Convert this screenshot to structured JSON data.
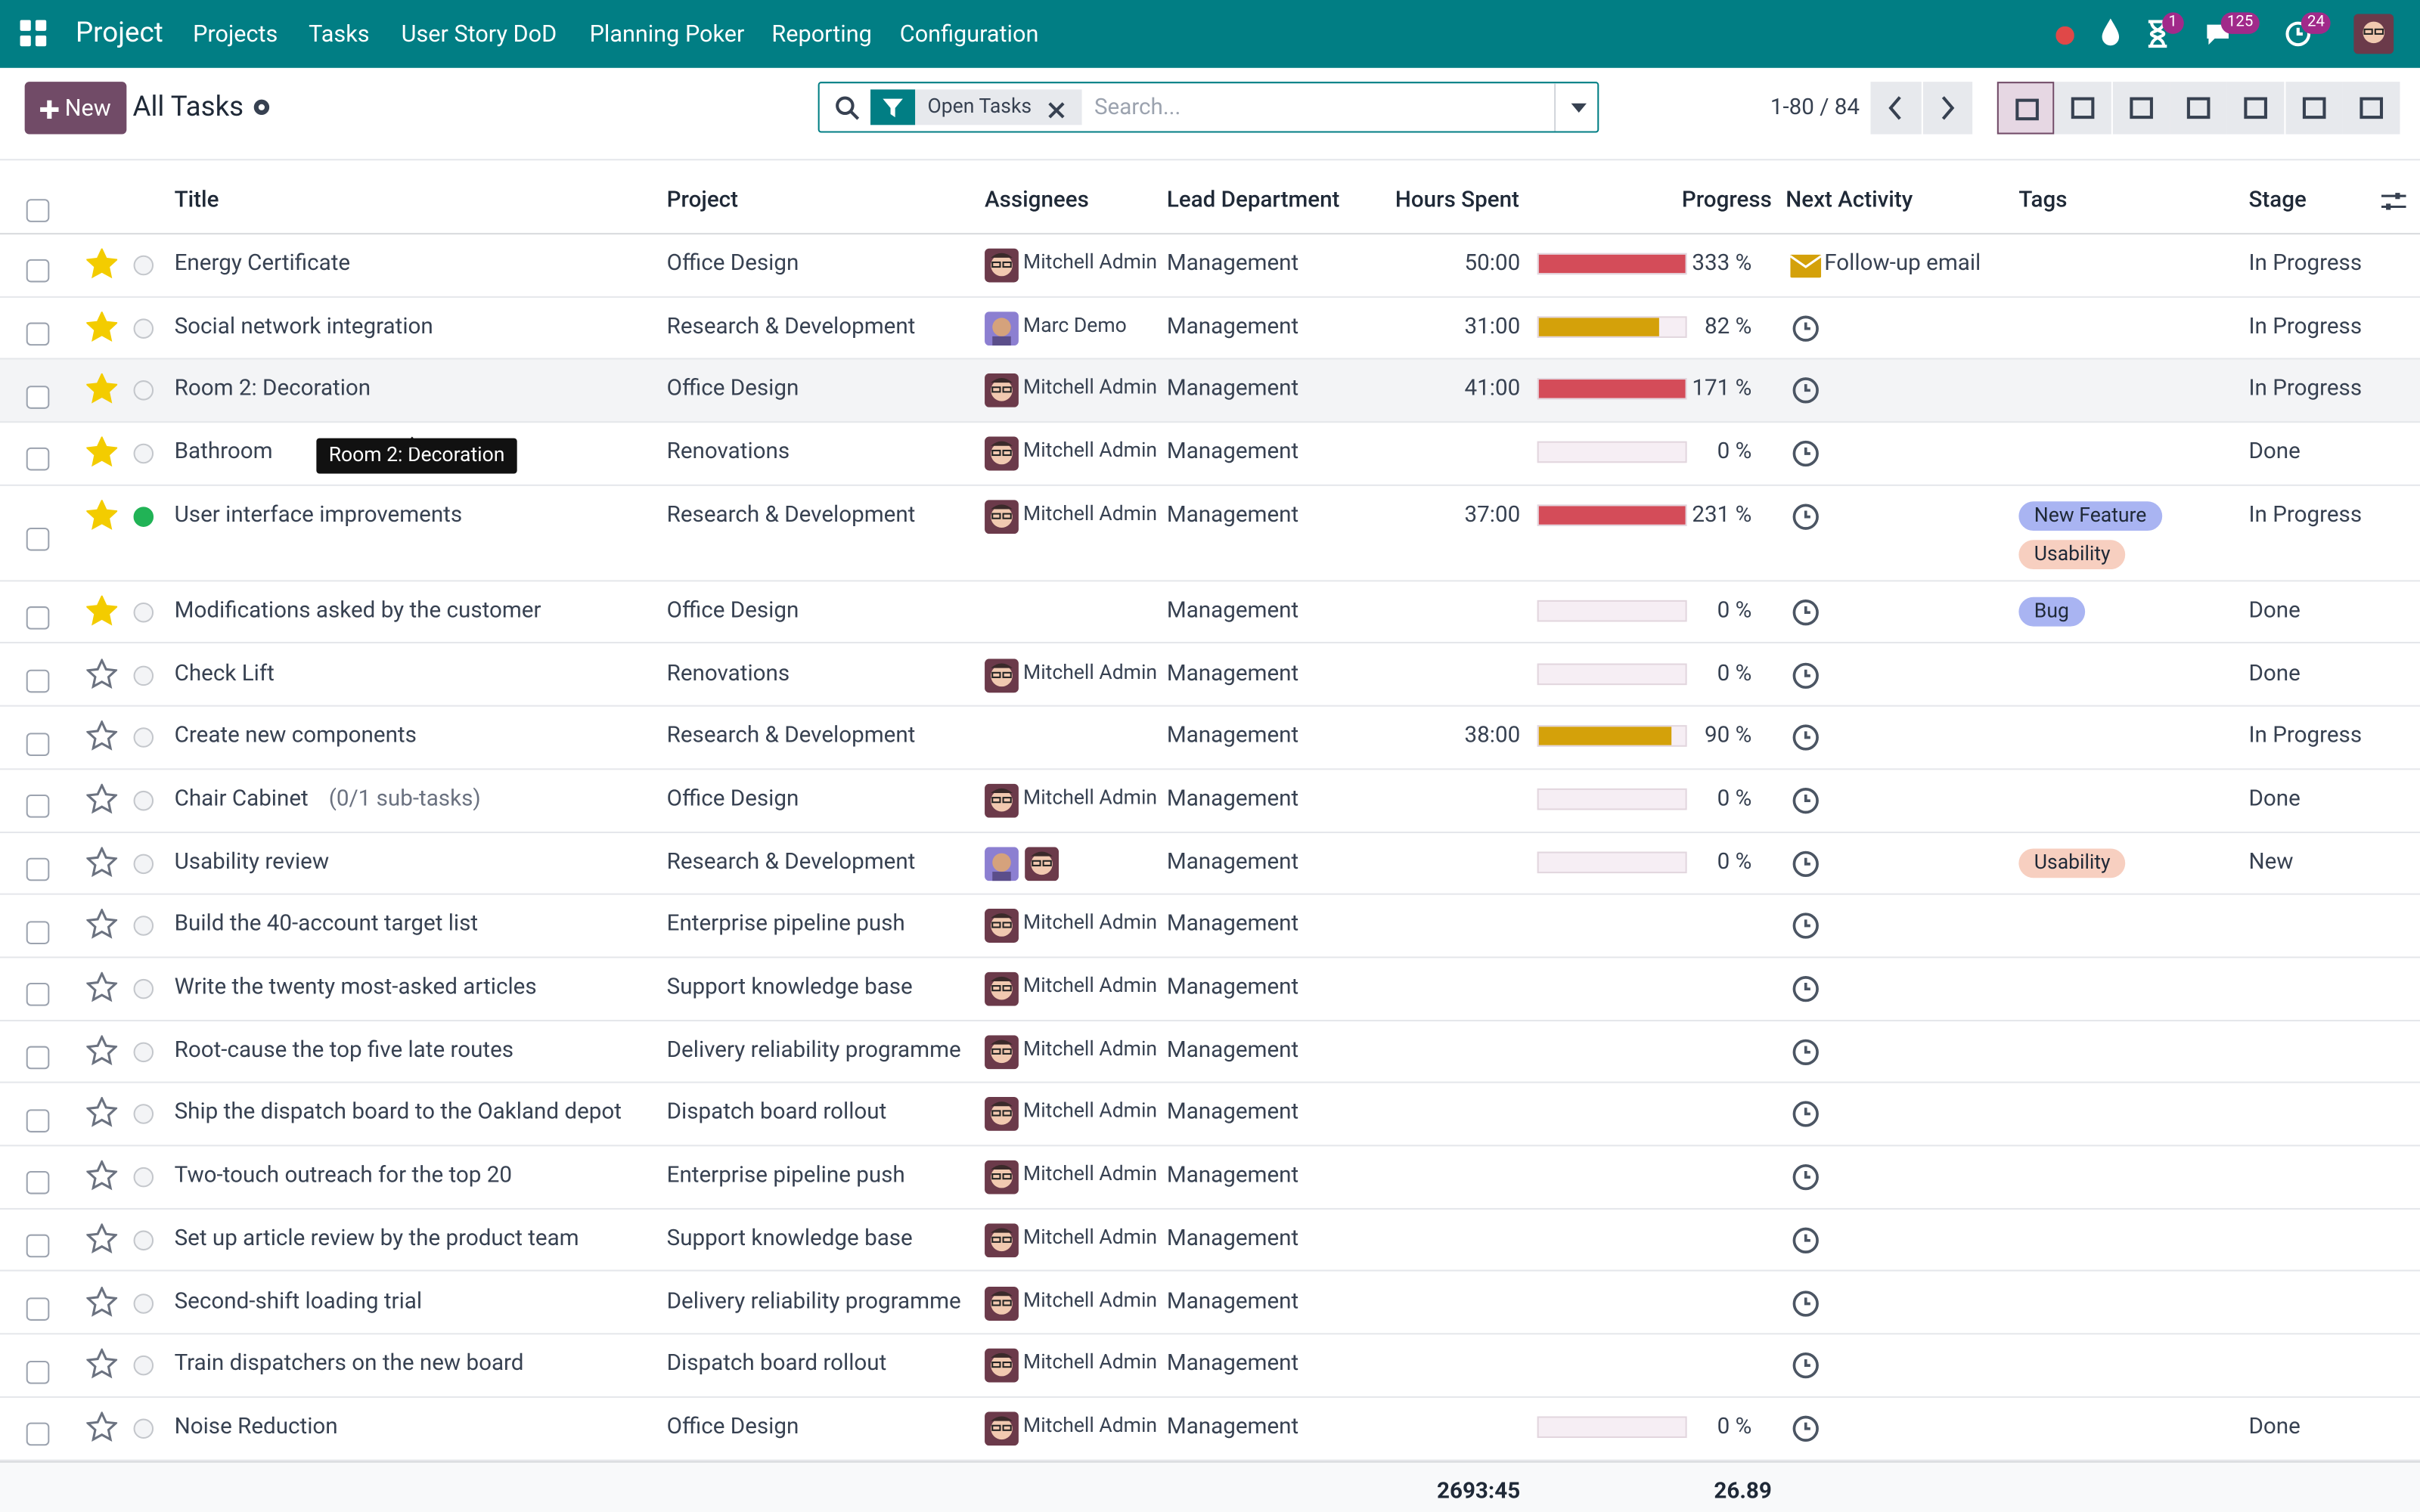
{
  "navbar": {
    "app": "Project",
    "menu": [
      "Projects",
      "Tasks",
      "User Story DoD",
      "Planning Poker",
      "Reporting",
      "Configuration"
    ],
    "badges": [
      "1",
      "125",
      "24"
    ]
  },
  "toolbar": {
    "new_button": "New",
    "breadcrumb": "All Tasks",
    "facet": "Open Tasks",
    "search_placeholder": "Search...",
    "pager": "1-80 / 84"
  },
  "table": {
    "headers": [
      "Title",
      "Project",
      "Assignees",
      "Lead Department",
      "Hours Spent",
      "Progress",
      "Next Activity",
      "Tags",
      "Stage"
    ],
    "rows": [
      {
        "title": "Energy Certificate",
        "starred": true,
        "status": "grey",
        "project": "Office Design",
        "avatars": [
          "admin"
        ],
        "assignee": "Mitchell Admin",
        "department": "Management",
        "hours": "50:00",
        "progress": 333,
        "progress_label": "333 %",
        "activity": "Follow-up email",
        "tags": [],
        "stage": "In Progress"
      },
      {
        "title": "Social network integration",
        "starred": true,
        "status": "grey",
        "project": "Research & Development",
        "avatars": [
          "marc"
        ],
        "assignee": "Marc Demo",
        "department": "Management",
        "hours": "31:00",
        "progress": 82,
        "progress_label": "82 %",
        "activity": null,
        "tags": [],
        "stage": "In Progress"
      },
      {
        "title": "Room 2: Decoration",
        "starred": true,
        "status": "grey",
        "project": "Office Design",
        "avatars": [
          "admin"
        ],
        "assignee": "Mitchell Admin",
        "department": "Management",
        "hours": "41:00",
        "progress": 171,
        "progress_label": "171 %",
        "activity": null,
        "tags": [],
        "stage": "In Progress",
        "hovered": true
      },
      {
        "title": "Bathroom",
        "starred": true,
        "status": "grey",
        "project": "Renovations",
        "avatars": [
          "admin"
        ],
        "assignee": "Mitchell Admin",
        "department": "Management",
        "hours": null,
        "progress": 0,
        "progress_label": "0 %",
        "activity": null,
        "tags": [],
        "stage": "Done"
      },
      {
        "title": "User interface improvements",
        "starred": true,
        "status": "green",
        "project": "Research & Development",
        "avatars": [
          "admin"
        ],
        "assignee": "Mitchell Admin",
        "department": "Management",
        "hours": "37:00",
        "progress": 231,
        "progress_label": "231 %",
        "activity": null,
        "tags": [
          {
            "label": "New Feature",
            "color": "#a9b4f2"
          },
          {
            "label": "Usability",
            "color": "#f7cfc0"
          }
        ],
        "stage": "In Progress"
      },
      {
        "title": "Modifications asked by the customer",
        "starred": true,
        "status": "grey",
        "project": "Office Design",
        "avatars": [],
        "assignee": null,
        "department": "Management",
        "hours": null,
        "progress": 0,
        "progress_label": "0 %",
        "activity": null,
        "tags": [
          {
            "label": "Bug",
            "color": "#a9b4f2"
          }
        ],
        "stage": "Done"
      },
      {
        "title": "Check Lift",
        "starred": false,
        "status": "grey",
        "project": "Renovations",
        "avatars": [
          "admin"
        ],
        "assignee": "Mitchell Admin",
        "department": "Management",
        "hours": null,
        "progress": 0,
        "progress_label": "0 %",
        "activity": null,
        "tags": [],
        "stage": "Done"
      },
      {
        "title": "Create new components",
        "starred": false,
        "status": "grey",
        "project": "Research & Development",
        "avatars": [],
        "assignee": null,
        "department": "Management",
        "hours": "38:00",
        "progress": 90,
        "progress_label": "90 %",
        "activity": null,
        "tags": [],
        "stage": "In Progress"
      },
      {
        "title": "Chair Cabinet",
        "subtasks": "(0/1 sub-tasks)",
        "starred": false,
        "status": "grey",
        "project": "Office Design",
        "avatars": [
          "admin"
        ],
        "assignee": "Mitchell Admin",
        "department": "Management",
        "hours": null,
        "progress": 0,
        "progress_label": "0 %",
        "activity": null,
        "tags": [],
        "stage": "Done"
      },
      {
        "title": "Usability review",
        "starred": false,
        "status": "grey",
        "project": "Research & Development",
        "avatars": [
          "marc",
          "admin"
        ],
        "assignee": null,
        "department": "Management",
        "hours": null,
        "progress": 0,
        "progress_label": "0 %",
        "activity": null,
        "tags": [
          {
            "label": "Usability",
            "color": "#f7cfc0"
          }
        ],
        "stage": "New"
      },
      {
        "title": "Build the 40-account target list",
        "starred": false,
        "status": "grey",
        "project": "Enterprise pipeline push",
        "avatars": [
          "admin"
        ],
        "assignee": "Mitchell Admin",
        "department": "Management",
        "hours": null,
        "progress": null,
        "progress_label": null,
        "activity": null,
        "tags": [],
        "stage": null
      },
      {
        "title": "Write the twenty most-asked articles",
        "starred": false,
        "status": "grey",
        "project": "Support knowledge base",
        "avatars": [
          "admin"
        ],
        "assignee": "Mitchell Admin",
        "department": "Management",
        "hours": null,
        "progress": null,
        "progress_label": null,
        "activity": null,
        "tags": [],
        "stage": null
      },
      {
        "title": "Root-cause the top five late routes",
        "starred": false,
        "status": "grey",
        "project": "Delivery reliability programme",
        "avatars": [
          "admin"
        ],
        "assignee": "Mitchell Admin",
        "department": "Management",
        "hours": null,
        "progress": null,
        "progress_label": null,
        "activity": null,
        "tags": [],
        "stage": null
      },
      {
        "title": "Ship the dispatch board to the Oakland depot",
        "starred": false,
        "status": "grey",
        "project": "Dispatch board rollout",
        "avatars": [
          "admin"
        ],
        "assignee": "Mitchell Admin",
        "department": "Management",
        "hours": null,
        "progress": null,
        "progress_label": null,
        "activity": null,
        "tags": [],
        "stage": null
      },
      {
        "title": "Two-touch outreach for the top 20",
        "starred": false,
        "status": "grey",
        "project": "Enterprise pipeline push",
        "avatars": [
          "admin"
        ],
        "assignee": "Mitchell Admin",
        "department": "Management",
        "hours": null,
        "progress": null,
        "progress_label": null,
        "activity": null,
        "tags": [],
        "stage": null
      },
      {
        "title": "Set up article review by the product team",
        "starred": false,
        "status": "grey",
        "project": "Support knowledge base",
        "avatars": [
          "admin"
        ],
        "assignee": "Mitchell Admin",
        "department": "Management",
        "hours": null,
        "progress": null,
        "progress_label": null,
        "activity": null,
        "tags": [],
        "stage": null
      },
      {
        "title": "Second-shift loading trial",
        "starred": false,
        "status": "grey",
        "project": "Delivery reliability programme",
        "avatars": [
          "admin"
        ],
        "assignee": "Mitchell Admin",
        "department": "Management",
        "hours": null,
        "progress": null,
        "progress_label": null,
        "activity": null,
        "tags": [],
        "stage": null
      },
      {
        "title": "Train dispatchers on the new board",
        "starred": false,
        "status": "grey",
        "project": "Dispatch board rollout",
        "avatars": [
          "admin"
        ],
        "assignee": "Mitchell Admin",
        "department": "Management",
        "hours": null,
        "progress": null,
        "progress_label": null,
        "activity": null,
        "tags": [],
        "stage": null
      },
      {
        "title": "Noise Reduction",
        "starred": false,
        "status": "grey",
        "project": "Office Design",
        "avatars": [
          "admin"
        ],
        "assignee": "Mitchell Admin",
        "department": "Management",
        "hours": null,
        "progress": 0,
        "progress_label": "0 %",
        "activity": null,
        "tags": [],
        "stage": "Done"
      }
    ],
    "totals": {
      "hours": "2693:45",
      "progress": "26.89"
    }
  },
  "tooltip": "Room 2: Decoration"
}
